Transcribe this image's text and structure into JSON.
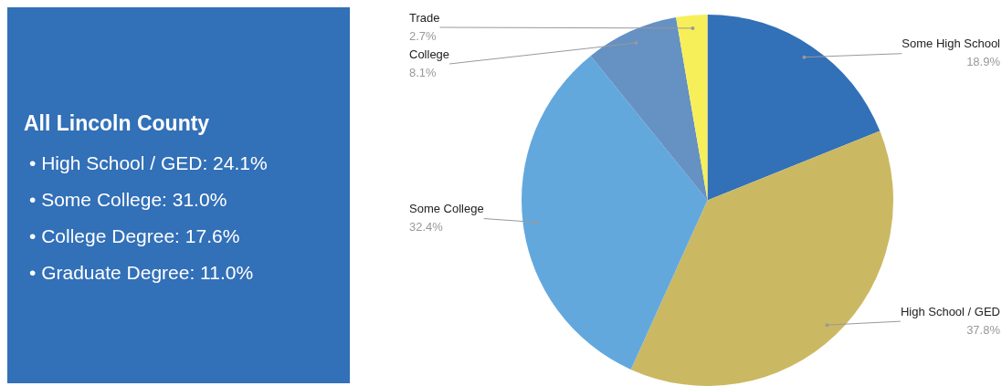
{
  "chart_data": [
    {
      "type": "other",
      "title": "All Lincoln County",
      "color": "#3270b8",
      "annotations": [
        "•  High School / GED: 24.1%",
        "•  Some College: 31.0%",
        "•  College Degree: 17.6%",
        "•  Graduate Degree: 11.0%"
      ]
    },
    {
      "type": "pie",
      "categories": [
        "Some High School",
        "High School / GED",
        "Some College",
        "College",
        "Trade"
      ],
      "values": [
        18.9,
        37.8,
        32.4,
        8.1,
        2.7
      ],
      "value_labels": [
        "18.9%",
        "37.8%",
        "32.4%",
        "8.1%",
        "2.7%"
      ],
      "colors": [
        "#3270b8",
        "#cbb863",
        "#62a8dd",
        "#6591c3",
        "#f7ef59"
      ],
      "legend": false
    }
  ]
}
